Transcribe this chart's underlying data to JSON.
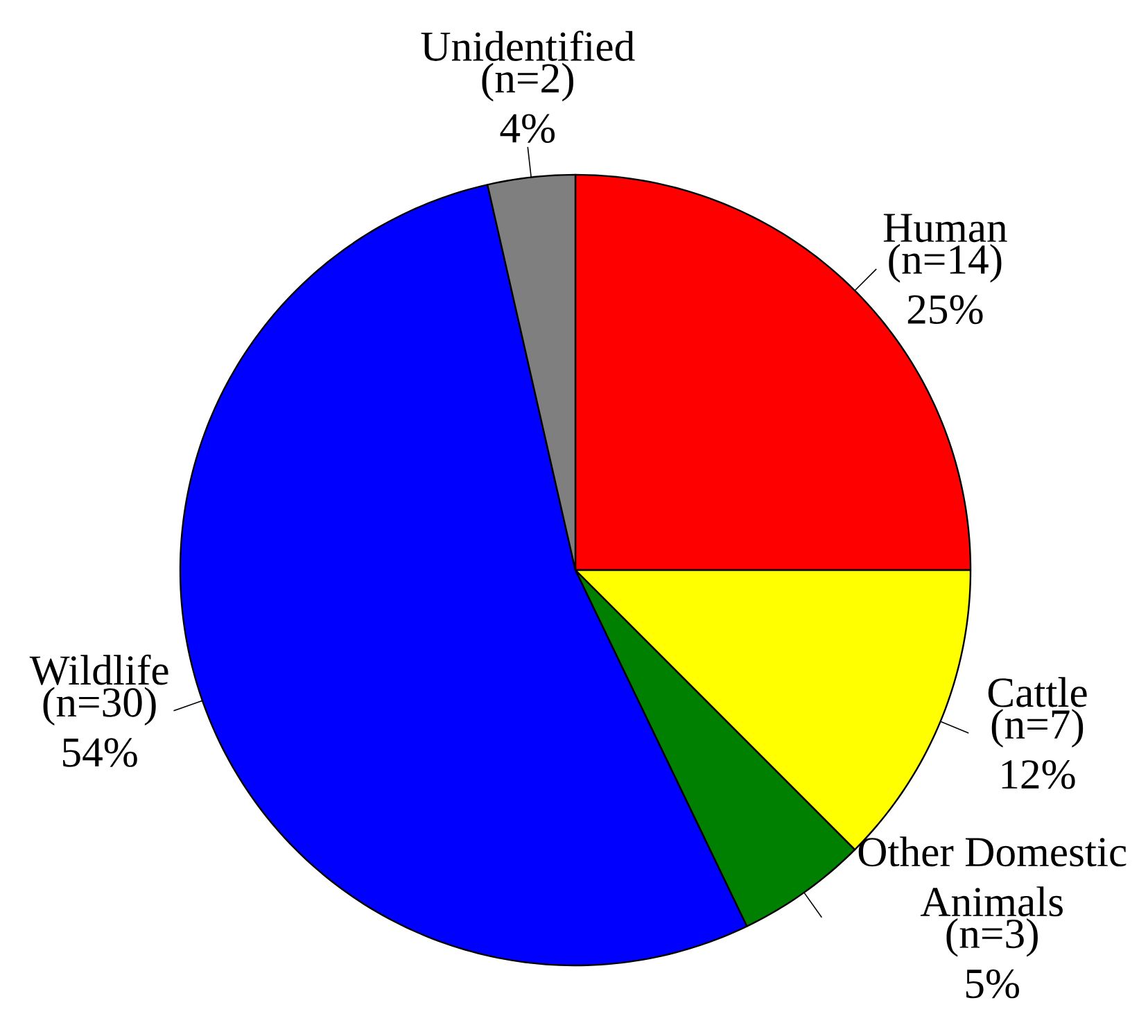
{
  "chart_data": {
    "type": "pie",
    "categories": [
      "Human",
      "Cattle",
      "Other Domestic Animals",
      "Wildlife",
      "Unidentified"
    ],
    "values": [
      14,
      7,
      3,
      30,
      2
    ],
    "value_labels": [
      "(n=14) 25%",
      "(n=7) 12%",
      "(n=3) 5%",
      "(n=30) 54%",
      "(n=2) 4%"
    ],
    "colors": [
      "#ff0000",
      "#ffff00",
      "#008000",
      "#0000ff",
      "#7f7f7f"
    ]
  }
}
